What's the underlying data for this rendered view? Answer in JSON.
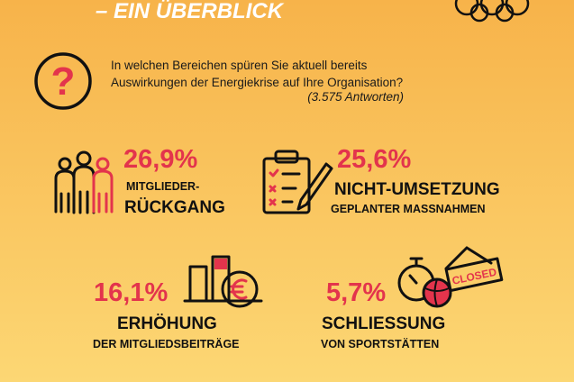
{
  "header": {
    "title": "– EIN ÜBERBLICK"
  },
  "question": {
    "icon": "?",
    "line1": "In welchen Bereichen spüren Sie aktuell bereits",
    "line2": "Auswirkungen der Energiekrise auf Ihre Organisation?",
    "responses": "(3.575 Antworten)"
  },
  "items": [
    {
      "percent": "26,9%",
      "line1": "MITGLIEDER-",
      "line2": "RÜCKGANG"
    },
    {
      "percent": "25,6%",
      "line1": "NICHT-UMSETZUNG",
      "line2": "GEPLANTER MASSNAHMEN"
    },
    {
      "percent": "16,1%",
      "line1": "ERHÖHUNG",
      "line2": "DER MITGLIEDSBEITRÄGE"
    },
    {
      "percent": "5,7%",
      "line1": "SCHLIESSUNG",
      "line2": "VON SPORTSTÄTTEN",
      "sign": "CLOSED"
    }
  ]
}
